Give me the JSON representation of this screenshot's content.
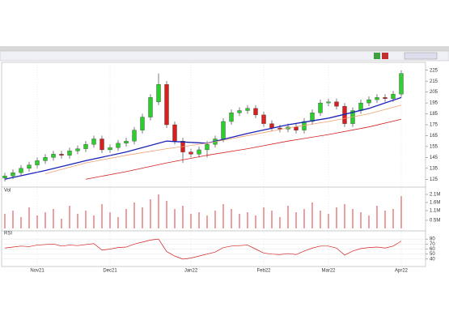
{
  "chart_data": [
    {
      "type": "candlestick",
      "categories": [
        null,
        null,
        null,
        null,
        "Nov21",
        null,
        null,
        null,
        null,
        null,
        null,
        null,
        null,
        "Dec21",
        null,
        null,
        null,
        null,
        null,
        null,
        null,
        null,
        null,
        "Jan22",
        null,
        null,
        null,
        null,
        null,
        null,
        null,
        null,
        "Feb22",
        null,
        null,
        null,
        null,
        null,
        null,
        null,
        "Mar22",
        null,
        null,
        null,
        null,
        null,
        null,
        null,
        null,
        "Apr22"
      ],
      "open": [
        126,
        128,
        131,
        135,
        138,
        142,
        145,
        148,
        147,
        151,
        153,
        157,
        162,
        152,
        154,
        158,
        160,
        170,
        182,
        196,
        212,
        175,
        160,
        150,
        148,
        152,
        157,
        162,
        178,
        186,
        188,
        190,
        184,
        176,
        172,
        171,
        173,
        170,
        178,
        186,
        195,
        196,
        192,
        176,
        188,
        195,
        198,
        200,
        199,
        203
      ],
      "high": [
        131,
        134,
        138,
        141,
        145,
        148,
        151,
        151,
        154,
        156,
        160,
        165,
        165,
        157,
        161,
        163,
        173,
        185,
        203,
        222,
        215,
        178,
        163,
        153,
        155,
        160,
        165,
        181,
        189,
        191,
        193,
        193,
        187,
        179,
        175,
        176,
        176,
        181,
        189,
        198,
        199,
        199,
        195,
        191,
        198,
        201,
        203,
        203,
        206,
        225
      ],
      "low": [
        123,
        125,
        128,
        132,
        135,
        139,
        142,
        144,
        144,
        148,
        150,
        154,
        149,
        149,
        151,
        155,
        157,
        167,
        179,
        193,
        172,
        157,
        140,
        145,
        145,
        145,
        154,
        159,
        175,
        183,
        185,
        181,
        173,
        169,
        168,
        168,
        167,
        167,
        175,
        183,
        192,
        189,
        173,
        173,
        185,
        192,
        195,
        196,
        196,
        200
      ],
      "close": [
        128,
        131,
        135,
        138,
        142,
        145,
        148,
        147,
        151,
        153,
        157,
        162,
        152,
        154,
        158,
        160,
        170,
        182,
        200,
        212,
        175,
        160,
        150,
        148,
        152,
        157,
        162,
        178,
        186,
        188,
        190,
        184,
        176,
        172,
        171,
        173,
        170,
        178,
        186,
        195,
        196,
        192,
        176,
        188,
        195,
        198,
        200,
        199,
        203,
        222
      ],
      "up_color": "#2ecc2e",
      "down_color": "#d42020",
      "lines": [
        {
          "color": "#1a22b8",
          "x": [
            0,
            5,
            10,
            15,
            20,
            25,
            30,
            35,
            40,
            45,
            49
          ],
          "values": [
            125,
            133,
            142,
            150,
            160,
            158,
            167,
            175,
            181,
            190,
            200
          ]
        },
        {
          "color": "#f0a070",
          "x": [
            5,
            10,
            15,
            20,
            25,
            30,
            35,
            40,
            45,
            49
          ],
          "values": [
            130,
            140,
            147,
            153,
            158,
            165,
            172,
            178,
            185,
            193
          ]
        },
        {
          "color": "#d42020",
          "x": [
            10,
            15,
            20,
            25,
            30,
            35,
            40,
            45,
            49
          ],
          "values": [
            125,
            132,
            140,
            147,
            153,
            160,
            166,
            173,
            180
          ]
        }
      ],
      "ylim": [
        120,
        230
      ],
      "yticks": [
        125,
        135,
        145,
        155,
        165,
        175,
        185,
        195,
        205,
        215,
        225
      ]
    },
    {
      "type": "bar",
      "title": "Vol",
      "color": "#e06060",
      "values": [
        0.9,
        1.1,
        0.7,
        1.3,
        0.8,
        1.0,
        1.2,
        0.6,
        1.4,
        0.9,
        1.1,
        0.8,
        1.5,
        1.0,
        0.7,
        1.2,
        1.6,
        1.3,
        1.8,
        2.1,
        1.7,
        1.2,
        1.4,
        0.9,
        1.0,
        0.8,
        1.1,
        1.5,
        1.2,
        0.9,
        1.0,
        0.8,
        1.3,
        1.1,
        0.7,
        1.4,
        1.0,
        1.2,
        1.6,
        1.1,
        0.9,
        1.3,
        1.5,
        1.2,
        1.0,
        0.8,
        1.4,
        1.1,
        1.2,
        2.0
      ],
      "ylim": [
        0,
        2.3
      ],
      "yticks": [
        {
          "value": 0.5,
          "label": "0.5M"
        },
        {
          "value": 1.1,
          "label": "1.1M"
        },
        {
          "value": 1.6,
          "label": "1.6M"
        },
        {
          "value": 2.1,
          "label": "2.1M"
        }
      ]
    },
    {
      "type": "line",
      "title": "RSI",
      "color": "#d42020",
      "values": [
        62,
        64,
        66,
        65,
        68,
        69,
        70,
        66,
        68,
        67,
        69,
        71,
        58,
        60,
        63,
        64,
        70,
        74,
        78,
        80,
        55,
        46,
        40,
        42,
        46,
        50,
        54,
        63,
        66,
        67,
        68,
        60,
        52,
        50,
        49,
        51,
        49,
        56,
        62,
        66,
        66,
        62,
        48,
        56,
        61,
        63,
        64,
        62,
        66,
        76
      ],
      "ylim": [
        30,
        90
      ],
      "yticks": [
        40,
        50,
        60,
        70,
        80
      ]
    }
  ]
}
